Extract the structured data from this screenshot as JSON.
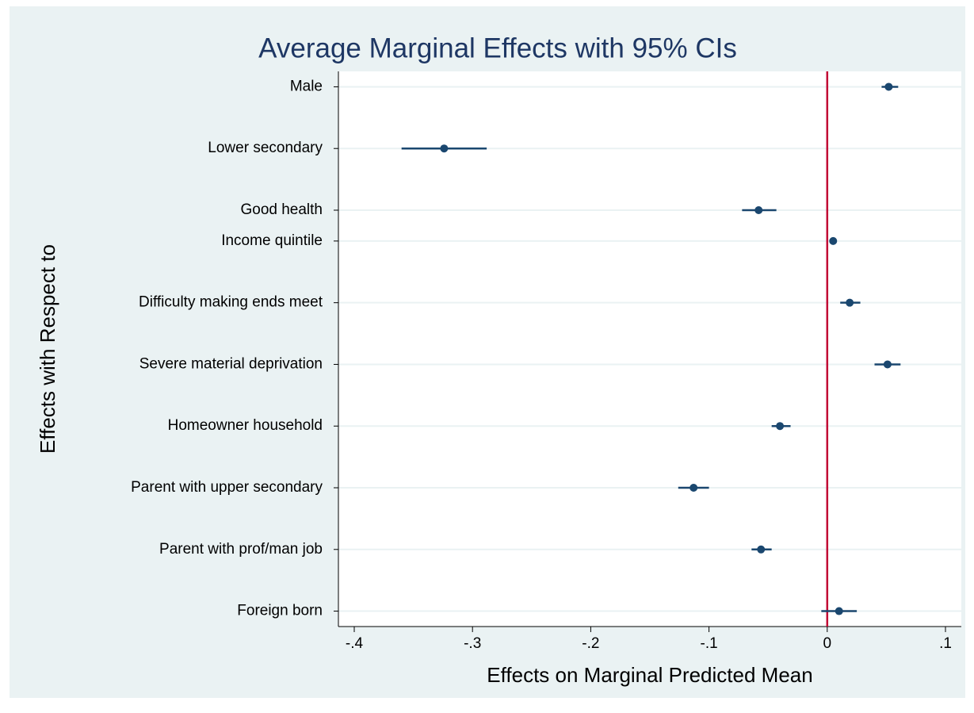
{
  "chart_data": {
    "type": "coefplot",
    "title": "Average Marginal Effects with 95% CIs",
    "x_label": "Effects on Marginal Predicted Mean",
    "y_label": "Effects with Respect to",
    "categories": [
      "Male",
      null,
      "Lower secondary",
      null,
      "Good health",
      "Income quintile",
      null,
      "Difficulty making ends meet",
      null,
      "Severe material deprivation",
      null,
      "Homeowner household",
      null,
      "Parent with upper secondary",
      null,
      "Parent with prof/man job",
      null,
      "Foreign born"
    ],
    "values": [
      0.052,
      null,
      -0.324,
      null,
      -0.058,
      0.005,
      null,
      0.019,
      null,
      0.051,
      null,
      -0.04,
      null,
      -0.113,
      null,
      -0.056,
      null,
      0.01
    ],
    "ci_low": [
      0.046,
      null,
      -0.36,
      null,
      -0.072,
      0.002,
      null,
      0.011,
      null,
      0.04,
      null,
      -0.047,
      null,
      -0.126,
      null,
      -0.064,
      null,
      -0.005
    ],
    "ci_high": [
      0.06,
      null,
      -0.288,
      null,
      -0.043,
      0.007,
      null,
      0.028,
      null,
      0.062,
      null,
      -0.031,
      null,
      -0.1,
      null,
      -0.047,
      null,
      0.025
    ],
    "color": "#1a476f",
    "reference_line": 0,
    "reference_color": "#c10534",
    "xlim": [
      -0.4134,
      0.1134
    ],
    "xticks": [
      {
        "value": -0.4,
        "label": "-.4"
      },
      {
        "value": -0.3,
        "label": "-.3"
      },
      {
        "value": -0.2,
        "label": "-.2"
      },
      {
        "value": -0.1,
        "label": "-.1"
      },
      0,
      {
        "value": 0.1,
        "label": ".1"
      }
    ],
    "grid": true
  }
}
